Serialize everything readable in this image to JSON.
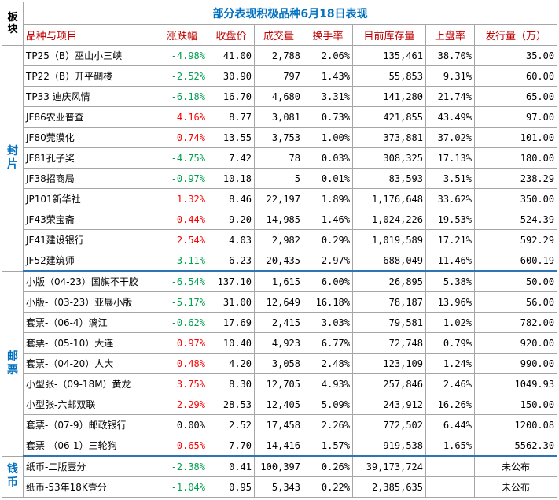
{
  "title": "部分表现积极品种6月18日表现",
  "header": {
    "bankuai": "板块",
    "columns": [
      "品种与项目",
      "涨跌幅",
      "收盘价",
      "成交量",
      "换手率",
      "目前库存量",
      "上盘率",
      "发行量（万）"
    ]
  },
  "sections": [
    {
      "label": "封片",
      "rows": [
        {
          "name": "TP25（B）巫山小三峡",
          "change": "-4.98%",
          "dir": "down",
          "close": "41.00",
          "volume": "2,788",
          "turnover": "2.06%",
          "inventory": "135,461",
          "listing_rate": "38.70%",
          "issue": "35.00"
        },
        {
          "name": "TP22（B）开平碉楼",
          "change": "-2.52%",
          "dir": "down",
          "close": "30.90",
          "volume": "797",
          "turnover": "1.43%",
          "inventory": "55,853",
          "listing_rate": "9.31%",
          "issue": "60.00"
        },
        {
          "name": "TP33 迪庆风情",
          "change": "-6.18%",
          "dir": "down",
          "close": "16.70",
          "volume": "4,680",
          "turnover": "3.31%",
          "inventory": "141,280",
          "listing_rate": "21.74%",
          "issue": "65.00"
        },
        {
          "name": "JF86农业普查",
          "change": "4.16%",
          "dir": "up",
          "close": "8.77",
          "volume": "3,081",
          "turnover": "0.73%",
          "inventory": "421,855",
          "listing_rate": "43.49%",
          "issue": "97.00"
        },
        {
          "name": "JF80莞漠化",
          "change": "0.74%",
          "dir": "up",
          "close": "13.55",
          "volume": "3,753",
          "turnover": "1.00%",
          "inventory": "373,881",
          "listing_rate": "37.02%",
          "issue": "101.00"
        },
        {
          "name": "JF81孔子奖",
          "change": "-4.75%",
          "dir": "down",
          "close": "7.42",
          "volume": "78",
          "turnover": "0.03%",
          "inventory": "308,325",
          "listing_rate": "17.13%",
          "issue": "180.00"
        },
        {
          "name": "JF38招商局",
          "change": "-0.97%",
          "dir": "down",
          "close": "10.18",
          "volume": "5",
          "turnover": "0.01%",
          "inventory": "83,593",
          "listing_rate": "3.51%",
          "issue": "238.29"
        },
        {
          "name": "JP101新华社",
          "change": "1.32%",
          "dir": "up",
          "close": "8.46",
          "volume": "22,197",
          "turnover": "1.89%",
          "inventory": "1,176,648",
          "listing_rate": "33.62%",
          "issue": "350.00"
        },
        {
          "name": "JF43荣宝斋",
          "change": "0.44%",
          "dir": "up",
          "close": "9.20",
          "volume": "14,985",
          "turnover": "1.46%",
          "inventory": "1,024,226",
          "listing_rate": "19.53%",
          "issue": "524.39"
        },
        {
          "name": "JF41建设银行",
          "change": "2.54%",
          "dir": "up",
          "close": "4.03",
          "volume": "2,982",
          "turnover": "0.29%",
          "inventory": "1,019,589",
          "listing_rate": "17.21%",
          "issue": "592.29"
        },
        {
          "name": "JF52建筑师",
          "change": "-3.11%",
          "dir": "down",
          "close": "6.23",
          "volume": "20,435",
          "turnover": "2.97%",
          "inventory": "688,049",
          "listing_rate": "11.46%",
          "issue": "600.19"
        }
      ]
    },
    {
      "label": "邮票",
      "rows": [
        {
          "name": "小版（04-23）国旗不干胶",
          "change": "-6.54%",
          "dir": "down",
          "close": "137.10",
          "volume": "1,615",
          "turnover": "6.00%",
          "inventory": "26,895",
          "listing_rate": "5.38%",
          "issue": "50.00"
        },
        {
          "name": "小版-（03-23）亚展小版",
          "change": "-5.17%",
          "dir": "down",
          "close": "31.00",
          "volume": "12,649",
          "turnover": "16.18%",
          "inventory": "78,187",
          "listing_rate": "13.96%",
          "issue": "56.00"
        },
        {
          "name": "套票-（06-4）漓江",
          "change": "-0.62%",
          "dir": "down",
          "close": "17.69",
          "volume": "2,415",
          "turnover": "3.03%",
          "inventory": "79,581",
          "listing_rate": "1.02%",
          "issue": "782.00"
        },
        {
          "name": "套票-（05-10）大连",
          "change": "0.97%",
          "dir": "up",
          "close": "10.40",
          "volume": "4,923",
          "turnover": "6.77%",
          "inventory": "72,748",
          "listing_rate": "0.79%",
          "issue": "920.00"
        },
        {
          "name": "套票-（04-20）人大",
          "change": "0.48%",
          "dir": "up",
          "close": "4.20",
          "volume": "3,058",
          "turnover": "2.48%",
          "inventory": "123,109",
          "listing_rate": "1.24%",
          "issue": "990.00"
        },
        {
          "name": "小型张-（09-18M）黄龙",
          "change": "3.75%",
          "dir": "up",
          "close": "8.30",
          "volume": "12,705",
          "turnover": "4.93%",
          "inventory": "257,846",
          "listing_rate": "2.46%",
          "issue": "1049.93"
        },
        {
          "name": "小型张-六邮双联",
          "change": "2.29%",
          "dir": "up",
          "close": "28.53",
          "volume": "12,405",
          "turnover": "5.09%",
          "inventory": "243,912",
          "listing_rate": "16.26%",
          "issue": "150.00"
        },
        {
          "name": "套票-（07-9）邮政银行",
          "change": "0.00%",
          "dir": "flat",
          "close": "2.52",
          "volume": "17,458",
          "turnover": "2.26%",
          "inventory": "772,502",
          "listing_rate": "6.44%",
          "issue": "1200.08"
        },
        {
          "name": "套票-（06-1）三轮狗",
          "change": "0.65%",
          "dir": "up",
          "close": "7.70",
          "volume": "14,416",
          "turnover": "1.57%",
          "inventory": "919,538",
          "listing_rate": "1.65%",
          "issue": "5562.30"
        }
      ]
    },
    {
      "label": "钱币",
      "rows": [
        {
          "name": "纸币-二版壹分",
          "change": "-2.38%",
          "dir": "down",
          "close": "0.41",
          "volume": "100,397",
          "turnover": "0.26%",
          "inventory": "39,173,724",
          "listing_rate": "",
          "issue": "未公布"
        },
        {
          "name": "纸币-53年18K壹分",
          "change": "-1.04%",
          "dir": "down",
          "close": "0.95",
          "volume": "5,343",
          "turnover": "0.22%",
          "inventory": "2,385,635",
          "listing_rate": "",
          "issue": "未公布"
        }
      ]
    }
  ],
  "colors": {
    "up": "#ff0000",
    "down": "#00a050",
    "header_text": "#c00000",
    "title": "#0070c0",
    "section": "#0070c0"
  }
}
